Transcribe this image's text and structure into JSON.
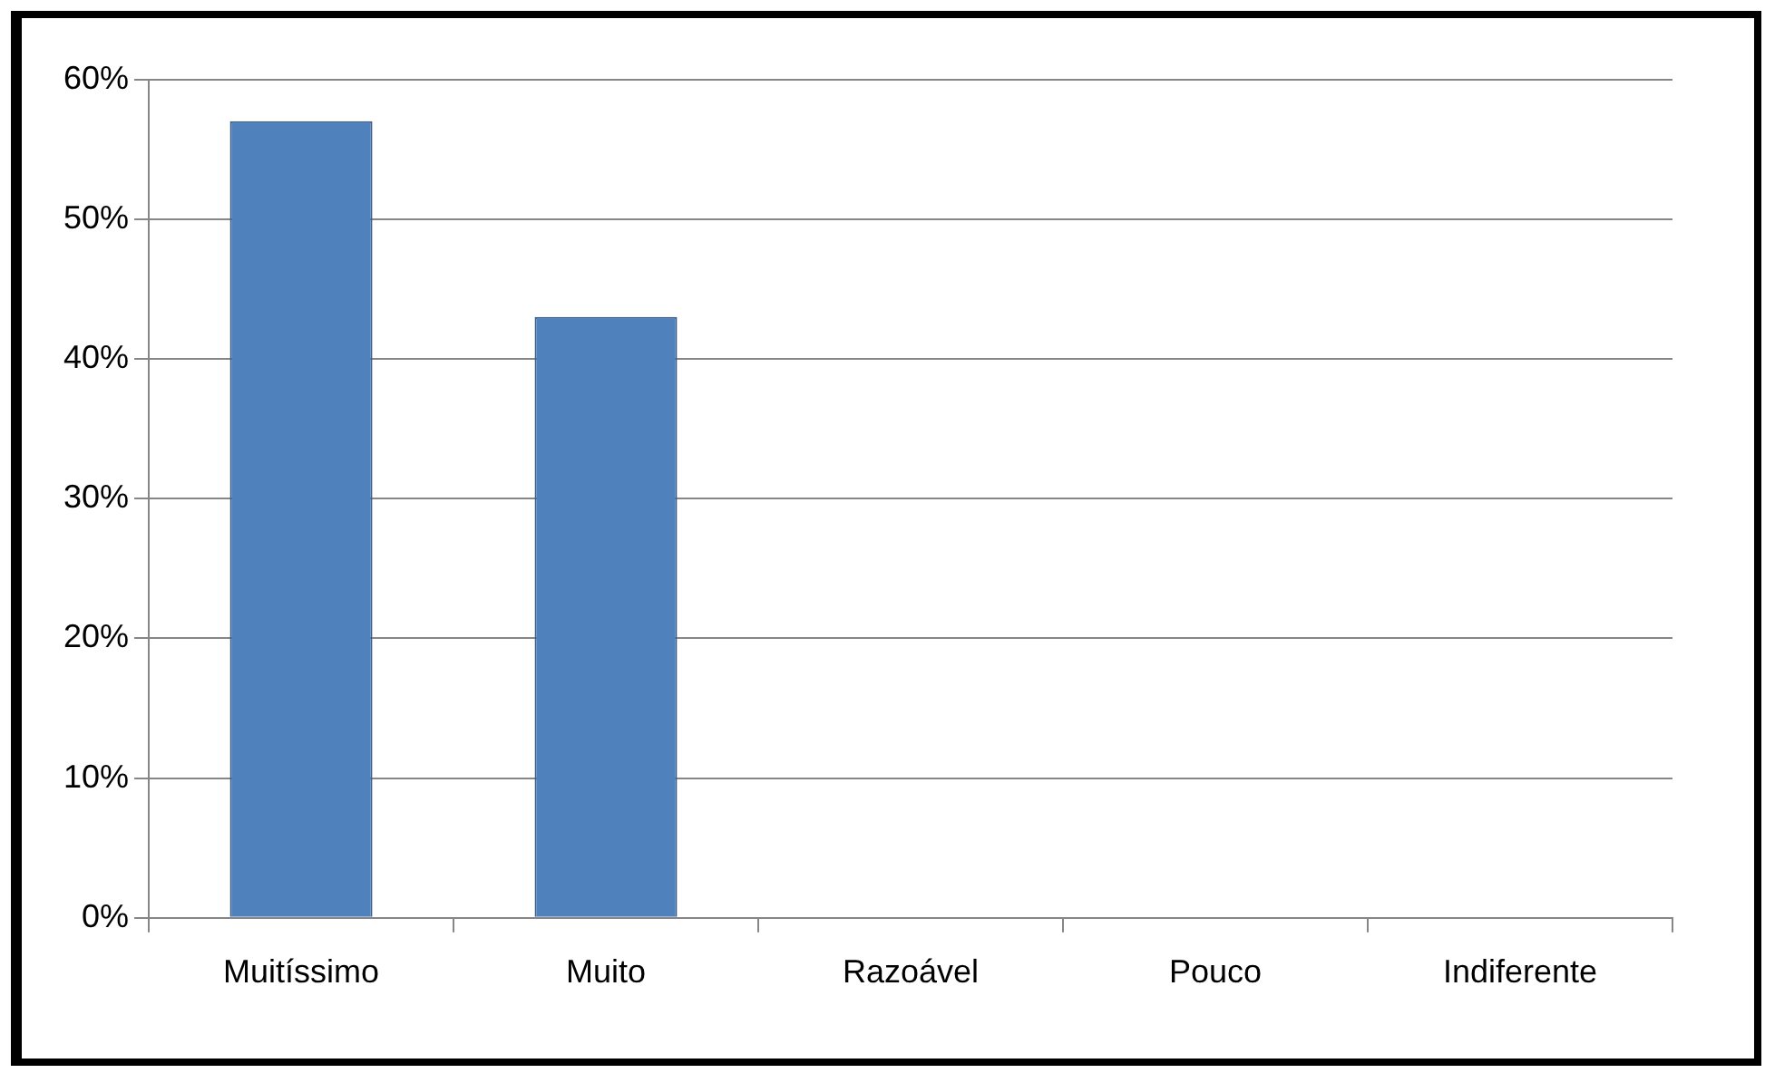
{
  "chart_data": {
    "type": "bar",
    "categories": [
      "Muitíssimo",
      "Muito",
      "Razoável",
      "Pouco",
      "Indiferente"
    ],
    "values": [
      57,
      43,
      0,
      0,
      0
    ],
    "color": "#4f81bd",
    "ylim": [
      0,
      60
    ],
    "yticks": [
      {
        "value": 0,
        "label": "0%"
      },
      {
        "value": 10,
        "label": "10%"
      },
      {
        "value": 20,
        "label": "20%"
      },
      {
        "value": 30,
        "label": "30%"
      },
      {
        "value": 40,
        "label": "40%"
      },
      {
        "value": 50,
        "label": "50%"
      },
      {
        "value": 60,
        "label": "60%"
      }
    ],
    "grid": "y"
  }
}
